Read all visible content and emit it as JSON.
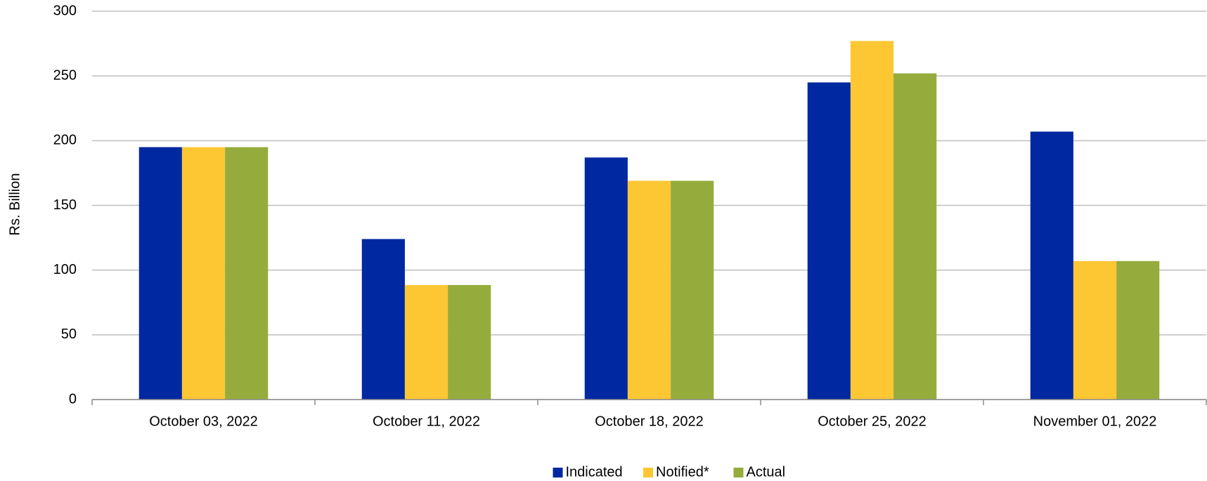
{
  "chart_data": {
    "type": "bar",
    "y_label": "Rs. Billion",
    "categories": [
      "October 03, 2022",
      "October 11, 2022",
      "October 18, 2022",
      "October 25, 2022",
      "November 01, 2022"
    ],
    "series": [
      {
        "name": "Indicated",
        "color": "#0028a0",
        "values": [
          195,
          124,
          187,
          245,
          207
        ]
      },
      {
        "name": "Notified*",
        "color": "#fdc734",
        "values": [
          195,
          88.5,
          169,
          277,
          107
        ]
      },
      {
        "name": "Actual",
        "color": "#95ac3c",
        "values": [
          195,
          88.5,
          169,
          252,
          107
        ]
      }
    ],
    "ylim": [
      0,
      300
    ],
    "yticks": [
      0,
      50,
      100,
      150,
      200,
      250,
      300
    ],
    "grid": true,
    "legend": "bottom"
  }
}
